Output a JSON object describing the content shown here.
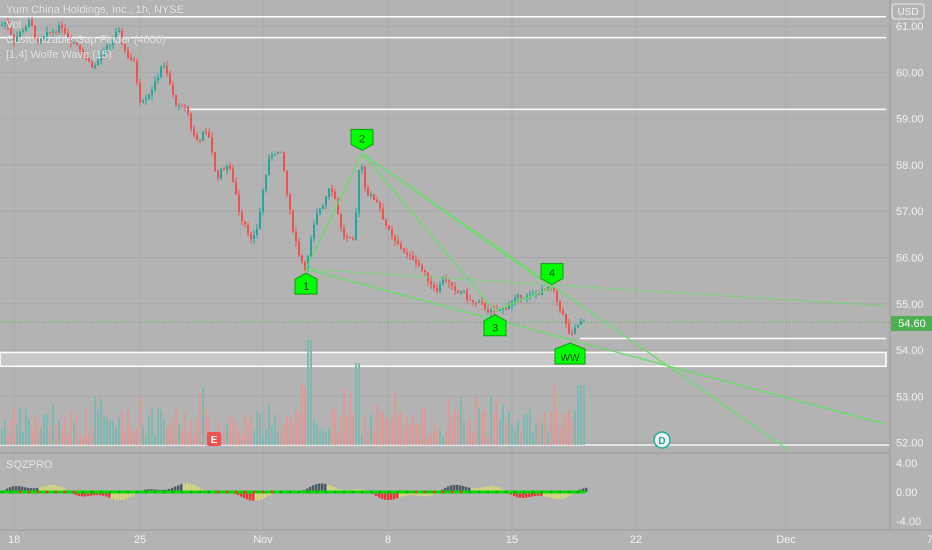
{
  "legend": {
    "title": "Yum China Holdings, Inc., 1h, NYSE",
    "vol": "Vol",
    "gap_finder": "Customizable Gap Finder (4000)",
    "wolfe": "[1.4] Wolfe Wave (15)"
  },
  "currency": "USD",
  "last_price": "54.60",
  "oscillator_label": "SQZPRO",
  "colors": {
    "up": "#26a69a",
    "down": "#ef5350",
    "wolfe": "#00ff00",
    "wolfe_line": "#66dd66",
    "gap": "#ffffff",
    "last_price": "#4caf50"
  },
  "chart_data": {
    "type": "candlestick",
    "price_axis": {
      "ticks": [
        "61.00",
        "60.00",
        "59.00",
        "58.00",
        "57.00",
        "56.00",
        "55.00",
        "54.00",
        "53.00",
        "52.00"
      ],
      "range": [
        51.85,
        61.55
      ]
    },
    "osc_axis": {
      "ticks": [
        "4.00",
        "0.00",
        "-4.00"
      ]
    },
    "x_ticks": [
      "18",
      "25",
      "Nov",
      "8",
      "15",
      "22",
      "Dec",
      "7"
    ],
    "gap_levels": [
      61.2,
      60.75,
      59.2
    ],
    "gap_zone": [
      53.65,
      53.95
    ],
    "current_level": 54.25,
    "wolfe_points": [
      {
        "label": "1",
        "price": 55.75
      },
      {
        "label": "2",
        "price": 58.25
      },
      {
        "label": "3",
        "price": 54.8
      },
      {
        "label": "4",
        "price": 55.35
      }
    ],
    "wolfe_target_label": "WW",
    "event_markers": [
      "E",
      "D"
    ],
    "close_path": [
      [
        0,
        61.0
      ],
      [
        6,
        61.1
      ],
      [
        14,
        60.7
      ],
      [
        22,
        60.9
      ],
      [
        30,
        61.1
      ],
      [
        38,
        60.6
      ],
      [
        46,
        60.8
      ],
      [
        54,
        60.9
      ],
      [
        62,
        61.0
      ],
      [
        70,
        60.7
      ],
      [
        78,
        60.6
      ],
      [
        86,
        60.3
      ],
      [
        94,
        60.1
      ],
      [
        102,
        60.4
      ],
      [
        110,
        60.6
      ],
      [
        118,
        60.9
      ],
      [
        126,
        60.4
      ],
      [
        134,
        60.2
      ],
      [
        140,
        59.4
      ],
      [
        148,
        59.5
      ],
      [
        156,
        59.8
      ],
      [
        162,
        60.2
      ],
      [
        168,
        59.9
      ],
      [
        174,
        59.4
      ],
      [
        180,
        59.2
      ],
      [
        186,
        59.3
      ],
      [
        192,
        58.7
      ],
      [
        198,
        58.5
      ],
      [
        204,
        58.7
      ],
      [
        210,
        58.6
      ],
      [
        216,
        57.7
      ],
      [
        222,
        57.9
      ],
      [
        228,
        58.0
      ],
      [
        234,
        57.6
      ],
      [
        240,
        56.9
      ],
      [
        246,
        56.7
      ],
      [
        252,
        56.3
      ],
      [
        258,
        56.7
      ],
      [
        264,
        57.6
      ],
      [
        270,
        58.2
      ],
      [
        276,
        58.3
      ],
      [
        282,
        58.2
      ],
      [
        288,
        57.2
      ],
      [
        294,
        56.5
      ],
      [
        300,
        56.0
      ],
      [
        306,
        55.75
      ],
      [
        312,
        56.5
      ],
      [
        318,
        57.0
      ],
      [
        324,
        57.2
      ],
      [
        330,
        57.6
      ],
      [
        336,
        57.2
      ],
      [
        342,
        56.5
      ],
      [
        348,
        56.4
      ],
      [
        354,
        56.3
      ],
      [
        360,
        58.25
      ],
      [
        366,
        57.4
      ],
      [
        372,
        57.3
      ],
      [
        378,
        57.2
      ],
      [
        384,
        56.8
      ],
      [
        390,
        56.5
      ],
      [
        396,
        56.3
      ],
      [
        402,
        56.2
      ],
      [
        408,
        56.0
      ],
      [
        414,
        56.0
      ],
      [
        420,
        55.8
      ],
      [
        426,
        55.6
      ],
      [
        432,
        55.4
      ],
      [
        438,
        55.3
      ],
      [
        444,
        55.6
      ],
      [
        450,
        55.4
      ],
      [
        456,
        55.2
      ],
      [
        462,
        55.3
      ],
      [
        468,
        55.1
      ],
      [
        474,
        55.0
      ],
      [
        480,
        55.0
      ],
      [
        486,
        54.9
      ],
      [
        492,
        54.8
      ],
      [
        498,
        54.85
      ],
      [
        504,
        54.9
      ],
      [
        510,
        55.0
      ],
      [
        516,
        55.1
      ],
      [
        522,
        55.2
      ],
      [
        528,
        55.15
      ],
      [
        534,
        55.2
      ],
      [
        540,
        55.25
      ],
      [
        546,
        55.3
      ],
      [
        552,
        55.35
      ],
      [
        558,
        55.0
      ],
      [
        564,
        54.7
      ],
      [
        568,
        54.4
      ],
      [
        572,
        54.3
      ],
      [
        576,
        54.5
      ],
      [
        580,
        54.6
      ],
      [
        584,
        54.6
      ]
    ]
  }
}
